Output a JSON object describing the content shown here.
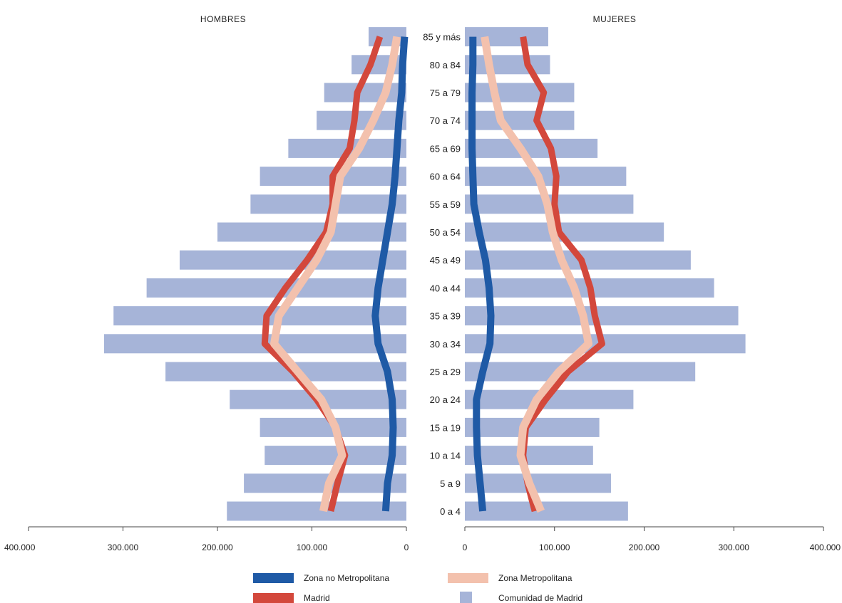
{
  "chart_data": {
    "type": "bar",
    "subtype": "population-pyramid",
    "panels": {
      "left": "HOMBRES",
      "right": "MUJERES"
    },
    "categories": [
      "0 a 4",
      "5 a 9",
      "10 a 14",
      "15 a 19",
      "20 a 24",
      "25 a 29",
      "30 a 34",
      "35 a 39",
      "40 a 44",
      "45 a 49",
      "50 a 54",
      "55 a 59",
      "60 a 64",
      "65 a 69",
      "70 a 74",
      "75 a 79",
      "80 a 84",
      "85 y más"
    ],
    "x_ticks": {
      "values": [
        0,
        100000,
        200000,
        300000,
        400000
      ],
      "labels": [
        "0",
        "100.000",
        "200.000",
        "300.000",
        "400.000"
      ]
    },
    "xlim": [
      0,
      400000
    ],
    "colors": {
      "bars": "#a6b4d8",
      "zona_no_metropolitana": "#1f5aa6",
      "madrid": "#d3483c",
      "zona_metropolitana": "#f3c1ad",
      "axis": "#444444"
    },
    "bars": {
      "name": "Comunidad de Madrid",
      "hombres": [
        190000,
        172000,
        150000,
        155000,
        187000,
        255000,
        320000,
        310000,
        275000,
        240000,
        200000,
        165000,
        155000,
        125000,
        95000,
        87000,
        58000,
        40000
      ],
      "mujeres": [
        182000,
        163000,
        143000,
        150000,
        188000,
        257000,
        313000,
        305000,
        278000,
        252000,
        222000,
        188000,
        180000,
        148000,
        122000,
        122000,
        95000,
        93000
      ]
    },
    "series": [
      {
        "name": "Zona no Metropolitana",
        "key": "zona_no_metropolitana",
        "hombres": [
          22000,
          20000,
          15000,
          14000,
          15000,
          20000,
          30000,
          33000,
          30000,
          25000,
          20000,
          15000,
          12000,
          10000,
          8000,
          5000,
          4000,
          2000
        ],
        "mujeres": [
          20000,
          17000,
          14000,
          13000,
          13000,
          20000,
          28000,
          29000,
          27000,
          23000,
          16000,
          10000,
          9000,
          8000,
          8000,
          8000,
          9000,
          9000
        ]
      },
      {
        "name": "Madrid",
        "key": "madrid",
        "hombres": [
          80000,
          73000,
          65000,
          75000,
          95000,
          120000,
          150000,
          148000,
          128000,
          105000,
          85000,
          78000,
          78000,
          60000,
          55000,
          52000,
          38000,
          28000
        ],
        "mujeres": [
          78000,
          70000,
          65000,
          68000,
          90000,
          115000,
          153000,
          145000,
          140000,
          130000,
          105000,
          100000,
          102000,
          96000,
          80000,
          88000,
          70000,
          65000
        ]
      },
      {
        "name": "Zona Metropolitana",
        "key": "zona_metropolitana",
        "hombres": [
          88000,
          82000,
          68000,
          75000,
          90000,
          115000,
          140000,
          135000,
          115000,
          95000,
          80000,
          75000,
          70000,
          50000,
          35000,
          22000,
          15000,
          10000
        ],
        "mujeres": [
          85000,
          72000,
          62000,
          65000,
          80000,
          105000,
          138000,
          132000,
          122000,
          108000,
          98000,
          92000,
          82000,
          62000,
          40000,
          33000,
          27000,
          22000
        ]
      }
    ],
    "legend": {
      "position": "bottom",
      "items": [
        {
          "label": "Zona no Metropolitana",
          "key": "zona_no_metropolitana",
          "style": "line"
        },
        {
          "label": "Zona Metropolitana",
          "key": "zona_metropolitana",
          "style": "line"
        },
        {
          "label": "Madrid",
          "key": "madrid",
          "style": "line"
        },
        {
          "label": "Comunidad de Madrid",
          "key": "bars",
          "style": "bar"
        }
      ]
    }
  }
}
